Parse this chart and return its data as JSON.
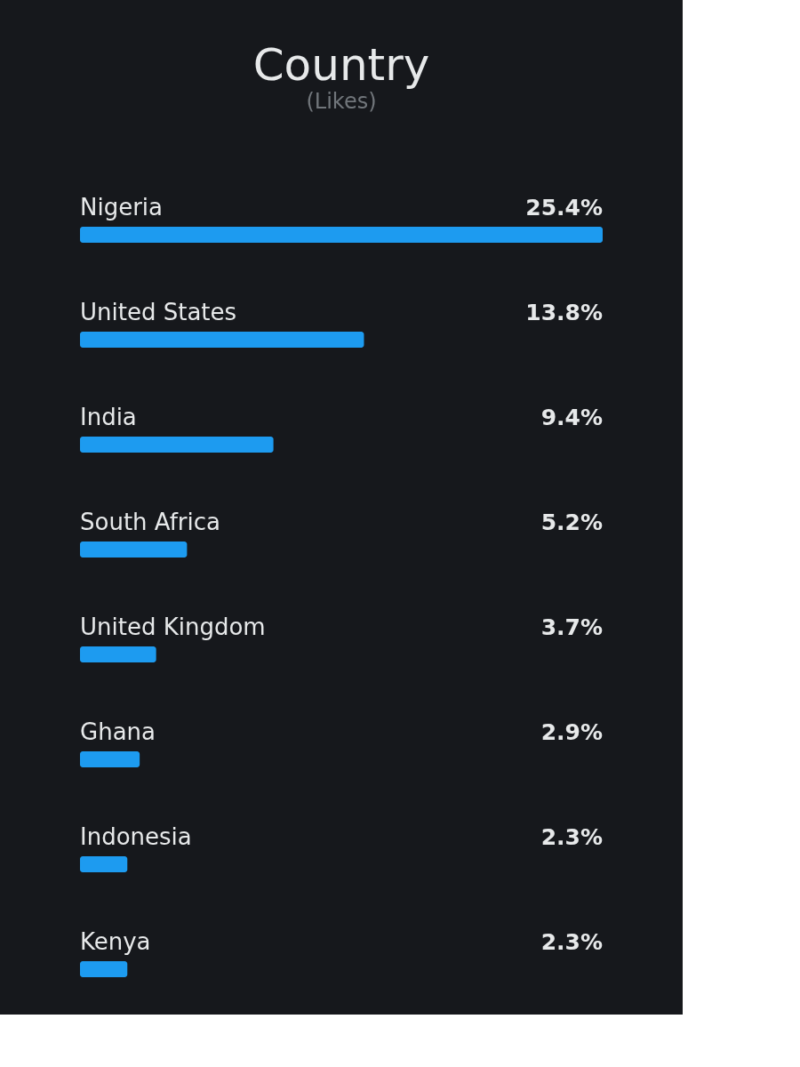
{
  "chart_data": {
    "type": "bar",
    "orientation": "horizontal",
    "title": "Country",
    "subtitle": "(Likes)",
    "categories": [
      "Nigeria",
      "United States",
      "India",
      "South Africa",
      "United Kingdom",
      "Ghana",
      "Indonesia",
      "Kenya"
    ],
    "values": [
      25.4,
      13.8,
      9.4,
      5.2,
      3.7,
      2.9,
      2.3,
      2.3
    ],
    "value_labels": [
      "25.4%",
      "13.8%",
      "9.4%",
      "5.2%",
      "3.7%",
      "2.9%",
      "2.3%",
      "2.3%"
    ],
    "color": "#1d9bf0",
    "tick_labels": false,
    "grid": false,
    "legend": false
  }
}
